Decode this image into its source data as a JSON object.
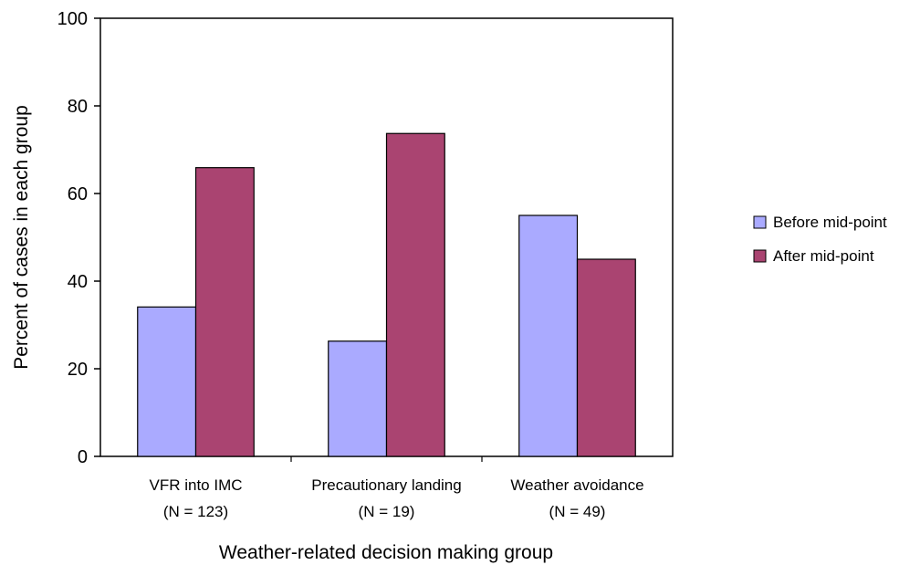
{
  "chart_data": {
    "type": "bar",
    "title": "",
    "xlabel": "Weather-related decision making group",
    "ylabel": "Percent of cases in each group",
    "categories": [
      {
        "line1": "VFR into IMC",
        "line2": "(N = 123)"
      },
      {
        "line1": "Precautionary landing",
        "line2": "(N = 19)"
      },
      {
        "line1": "Weather avoidance",
        "line2": "(N = 49)"
      }
    ],
    "series": [
      {
        "name": "Before mid-point",
        "values": [
          34.1,
          26.3,
          55.0
        ],
        "color": "#aaaaff"
      },
      {
        "name": "After mid-point",
        "values": [
          65.9,
          73.7,
          45.0
        ],
        "color": "#aa4471"
      }
    ],
    "ylim": [
      0,
      100
    ],
    "yticks": [
      0,
      20,
      40,
      60,
      80,
      100
    ],
    "grid": false,
    "legend_position": "right"
  }
}
